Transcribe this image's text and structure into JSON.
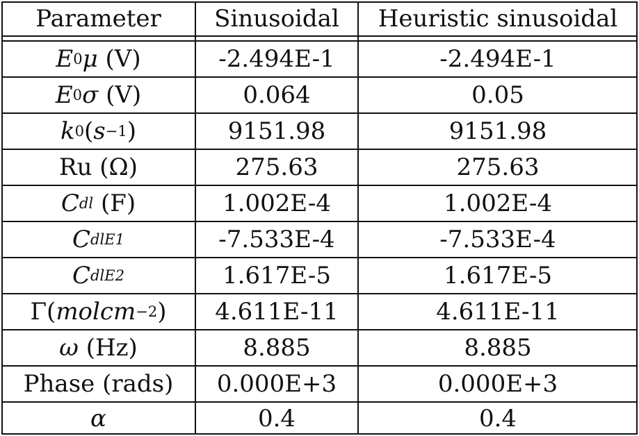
{
  "table": {
    "headers": [
      "Parameter",
      "Sinusoidal",
      "Heuristic sinusoidal"
    ],
    "rows": [
      {
        "parameter": "E0μ (V)",
        "sinusoidal": "-2.494E-1",
        "heuristic": "-2.494E-1"
      },
      {
        "parameter": "E0σ (V)",
        "sinusoidal": "0.064",
        "heuristic": "0.05"
      },
      {
        "parameter": "k0(s−1)",
        "sinusoidal": "9151.98",
        "heuristic": "9151.98"
      },
      {
        "parameter": "Ru (Ω)",
        "sinusoidal": "275.63",
        "heuristic": "275.63"
      },
      {
        "parameter": "Cdl (F)",
        "sinusoidal": "1.002E-4",
        "heuristic": "1.002E-4"
      },
      {
        "parameter": "CdlE1",
        "sinusoidal": "-7.533E-4",
        "heuristic": "-7.533E-4"
      },
      {
        "parameter": "CdlE2",
        "sinusoidal": "1.617E-5",
        "heuristic": "1.617E-5"
      },
      {
        "parameter": "Γ(molcm−2)",
        "sinusoidal": "4.611E-11",
        "heuristic": "4.611E-11"
      },
      {
        "parameter": "ω (Hz)",
        "sinusoidal": "8.885",
        "heuristic": "8.885"
      },
      {
        "parameter": "Phase (rads)",
        "sinusoidal": "0.000E+3",
        "heuristic": "0.000E+3"
      },
      {
        "parameter": "α",
        "sinusoidal": "0.4",
        "heuristic": "0.4"
      }
    ]
  }
}
